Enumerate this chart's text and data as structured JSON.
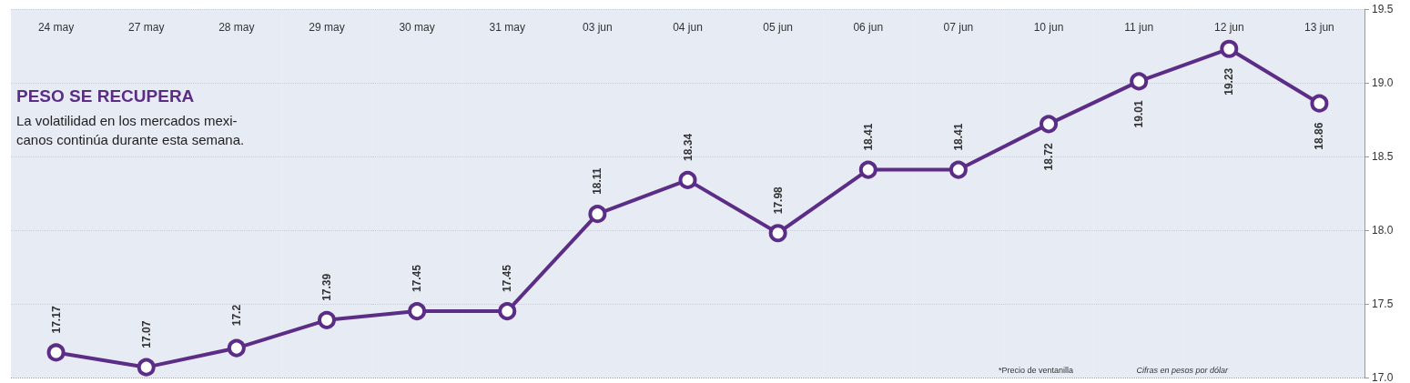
{
  "chart_data": {
    "type": "line",
    "title": "PESO SE RECUPERA",
    "subtitle": "La volatilidad en los mercados mexi-\ncanos continúa durante esta semana.",
    "categories": [
      "24 may",
      "27 may",
      "28 may",
      "29 may",
      "30 may",
      "31 may",
      "03 jun",
      "04 jun",
      "05 jun",
      "06 jun",
      "07 jun",
      "10 jun",
      "11 jun",
      "12 jun",
      "13 jun"
    ],
    "series": [
      {
        "color": "#5c2d86",
        "values": [
          17.17,
          17.07,
          17.2,
          17.39,
          17.45,
          17.45,
          18.11,
          18.34,
          17.98,
          18.41,
          18.41,
          18.72,
          19.01,
          19.23,
          18.86
        ]
      }
    ],
    "ylim": [
      17.0,
      19.5
    ],
    "yticks": [
      {
        "value": 17.0,
        "label": "17.0"
      },
      {
        "value": 17.5,
        "label": "17.5"
      },
      {
        "value": 18.0,
        "label": "18.0"
      },
      {
        "value": 18.5,
        "label": "18.5"
      },
      {
        "value": 19.0,
        "label": "19.0"
      },
      {
        "value": 19.5,
        "label": "19.5"
      }
    ],
    "grid": "y",
    "marker": "circle",
    "line_style": "solid",
    "data_labels": true,
    "annotations": [
      "*Precio de ventanilla",
      "Cifras en pesos por dólar"
    ]
  }
}
